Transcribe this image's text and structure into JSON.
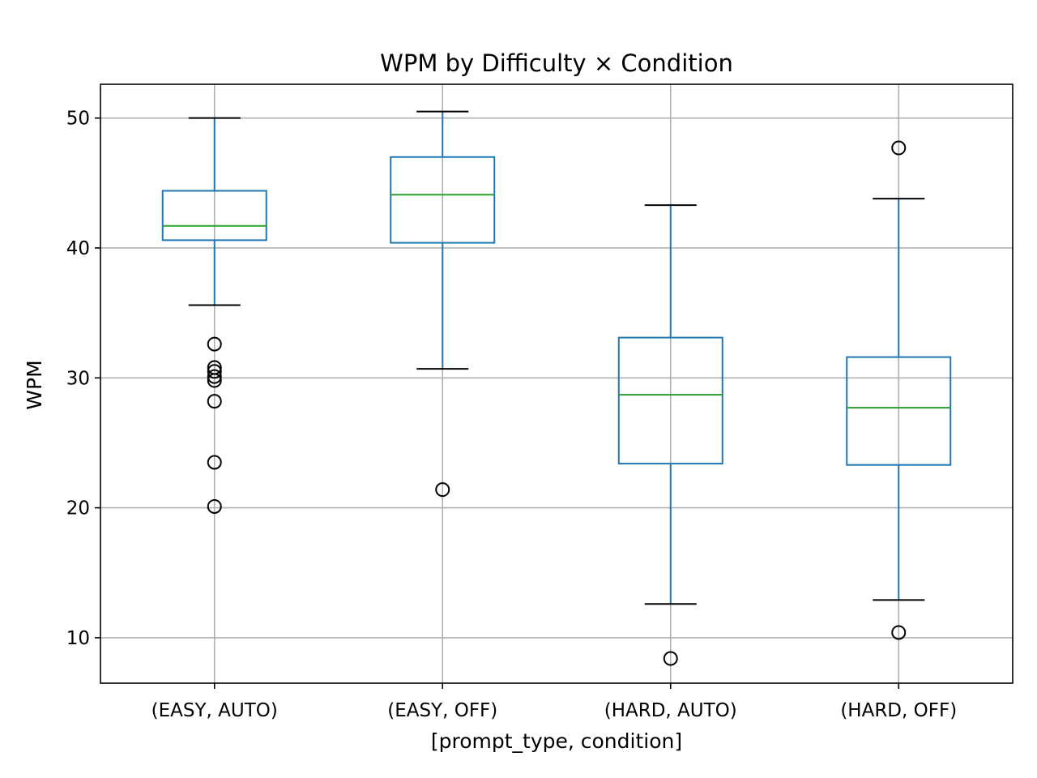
{
  "chart_data": {
    "type": "box",
    "title": "WPM by Difficulty × Condition",
    "xlabel": "[prompt_type, condition]",
    "ylabel": "WPM",
    "ylim": [
      6.5,
      52.6
    ],
    "yticks": [
      10,
      20,
      30,
      40,
      50
    ],
    "grid": true,
    "colors": {
      "box": "#1f77b4",
      "median": "#2ca02c",
      "whisker": "#1f77b4",
      "cap": "#000000",
      "flier": "#000000",
      "grid": "#b0b0b0"
    },
    "categories": [
      "(EASY, AUTO)",
      "(EASY, OFF)",
      "(HARD, AUTO)",
      "(HARD, OFF)"
    ],
    "boxes": [
      {
        "whisker_low": 35.6,
        "q1": 40.6,
        "median": 41.7,
        "q3": 44.4,
        "whisker_high": 50.0,
        "fliers": [
          32.6,
          30.8,
          30.5,
          30.1,
          29.8,
          28.2,
          23.5,
          20.1
        ]
      },
      {
        "whisker_low": 30.7,
        "q1": 40.4,
        "median": 44.1,
        "q3": 47.0,
        "whisker_high": 50.5,
        "fliers": [
          21.4
        ]
      },
      {
        "whisker_low": 12.6,
        "q1": 23.4,
        "median": 28.7,
        "q3": 33.1,
        "whisker_high": 43.3,
        "fliers": [
          8.4
        ]
      },
      {
        "whisker_low": 12.9,
        "q1": 23.3,
        "median": 27.7,
        "q3": 31.6,
        "whisker_high": 43.8,
        "fliers": [
          47.7,
          10.4
        ]
      }
    ]
  }
}
